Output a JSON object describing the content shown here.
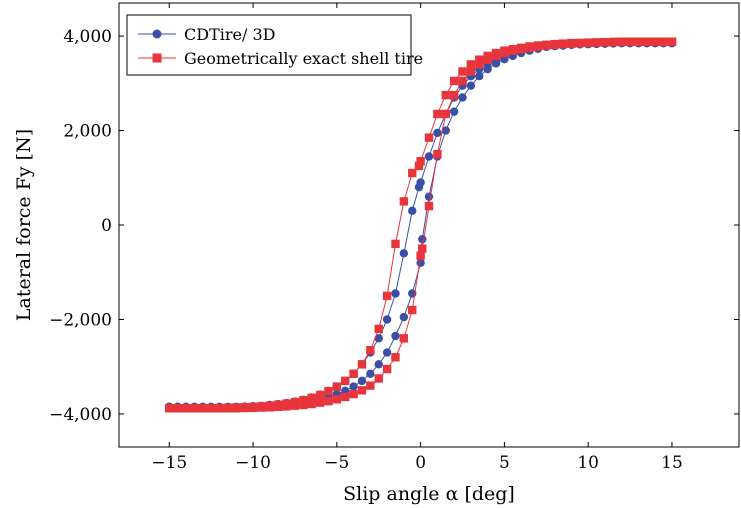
{
  "chart_data": {
    "type": "line",
    "xlabel": "Slip angle α [deg]",
    "ylabel": "Lateral force Fy [N]",
    "xlim": [
      -18,
      19
    ],
    "ylim": [
      -4700,
      4700
    ],
    "x_ticks": [
      -15,
      -10,
      -5,
      0,
      5,
      10,
      15
    ],
    "x_tick_labels": [
      "−15",
      "−10",
      "−5",
      "0",
      "5",
      "10",
      "15"
    ],
    "y_ticks": [
      -4000,
      -2000,
      0,
      2000,
      4000
    ],
    "y_tick_labels": [
      "−4,000",
      "−2,000",
      "0",
      "2,000",
      "4,000"
    ],
    "grid": false,
    "legend_position": "top-left",
    "series": [
      {
        "name": "CDTire/ 3D",
        "color": "#3b4fa7",
        "marker": "circle",
        "branches": [
          {
            "x": [
              -15,
              -14.5,
              -14,
              -13.5,
              -13,
              -12.5,
              -12,
              -11.5,
              -11,
              -10.5,
              -10,
              -9.5,
              -9,
              -8.5,
              -8,
              -7.5,
              -7,
              -6.5,
              -6,
              -5.5,
              -5,
              -4.5,
              -4,
              -3.5,
              -3,
              -2.5,
              -2,
              -1.5,
              -1,
              -0.5,
              -0.1,
              0,
              0.5,
              1,
              1.5,
              2,
              2.5,
              3,
              3.5,
              4,
              4.5,
              5,
              5.5,
              6,
              6.5,
              7,
              7.5,
              8,
              8.5,
              9,
              9.5,
              10,
              10.5,
              11,
              11.5,
              12,
              12.5,
              13,
              13.5,
              14,
              14.5,
              15
            ],
            "y": [
              -3850,
              -3850,
              -3850,
              -3855,
              -3855,
              -3860,
              -3860,
              -3860,
              -3855,
              -3850,
              -3840,
              -3830,
              -3810,
              -3790,
              -3770,
              -3740,
              -3700,
              -3650,
              -3590,
              -3510,
              -3420,
              -3300,
              -3150,
              -2950,
              -2700,
              -2400,
              -2000,
              -1450,
              -600,
              300,
              800,
              900,
              1450,
              1950,
              2350,
              2700,
              2950,
              3150,
              3300,
              3420,
              3510,
              3580,
              3640,
              3690,
              3720,
              3750,
              3780,
              3790,
              3800,
              3815,
              3825,
              3830,
              3835,
              3840,
              3845,
              3850,
              3850,
              3850,
              3850,
              3850,
              3850,
              3850
            ]
          },
          {
            "x": [
              15,
              14.5,
              14,
              13.5,
              13,
              12.5,
              12,
              11.5,
              11,
              10.5,
              10,
              9.5,
              9,
              8.5,
              8,
              7.5,
              7,
              6.5,
              6,
              5.5,
              5,
              4.5,
              4,
              3.5,
              3,
              2.5,
              2,
              1.5,
              1,
              0.5,
              0.1,
              0,
              -0.5,
              -1,
              -1.5,
              -2,
              -2.5,
              -3,
              -3.5,
              -4,
              -4.5,
              -5,
              -5.5,
              -6,
              -6.5,
              -7,
              -7.5,
              -8,
              -8.5,
              -9,
              -9.5,
              -10,
              -10.5,
              -11,
              -11.5,
              -12,
              -12.5,
              -13,
              -13.5,
              -14,
              -14.5,
              -15
            ],
            "y": [
              3850,
              3850,
              3850,
              3850,
              3850,
              3850,
              3850,
              3845,
              3840,
              3835,
              3830,
              3825,
              3815,
              3800,
              3790,
              3770,
              3730,
              3690,
              3640,
              3580,
              3510,
              3420,
              3300,
              3150,
              2950,
              2700,
              2400,
              2000,
              1450,
              600,
              -300,
              -800,
              -1450,
              -1950,
              -2350,
              -2700,
              -2950,
              -3150,
              -3300,
              -3420,
              -3510,
              -3580,
              -3640,
              -3690,
              -3730,
              -3760,
              -3780,
              -3800,
              -3815,
              -3825,
              -3835,
              -3840,
              -3845,
              -3850,
              -3850,
              -3850,
              -3850,
              -3850,
              -3850,
              -3850,
              -3850,
              -3850
            ]
          }
        ]
      },
      {
        "name": "Geometrically exact shell tire",
        "color": "#e8353b",
        "marker": "square",
        "branches": [
          {
            "x": [
              -15,
              -14.5,
              -14,
              -13.5,
              -13,
              -12.5,
              -12,
              -11.5,
              -11,
              -10.5,
              -10,
              -9.5,
              -9,
              -8.5,
              -8,
              -7.5,
              -7,
              -6.5,
              -6,
              -5.5,
              -5,
              -4.5,
              -4,
              -3.5,
              -3,
              -2.5,
              -2,
              -1.5,
              -1,
              -0.5,
              -0.1,
              0,
              0.5,
              1,
              1.5,
              2,
              2.5,
              3,
              3.5,
              4,
              4.5,
              5,
              5.5,
              6,
              6.5,
              7,
              7.5,
              8,
              8.5,
              9,
              9.5,
              10,
              10.5,
              11,
              11.5,
              12,
              12.5,
              13,
              13.5,
              14,
              14.5,
              15
            ],
            "y": [
              -3880,
              -3880,
              -3880,
              -3880,
              -3880,
              -3880,
              -3875,
              -3870,
              -3865,
              -3860,
              -3850,
              -3840,
              -3825,
              -3805,
              -3780,
              -3750,
              -3710,
              -3660,
              -3600,
              -3520,
              -3420,
              -3300,
              -3150,
              -2950,
              -2650,
              -2200,
              -1500,
              -400,
              500,
              1100,
              1250,
              1350,
              1850,
              2350,
              2750,
              3050,
              3250,
              3400,
              3500,
              3580,
              3640,
              3690,
              3720,
              3750,
              3780,
              3800,
              3815,
              3830,
              3840,
              3850,
              3855,
              3860,
              3865,
              3870,
              3875,
              3880,
              3880,
              3880,
              3880,
              3880,
              3880,
              3880
            ]
          },
          {
            "x": [
              15,
              14.5,
              14,
              13.5,
              13,
              12.5,
              12,
              11.5,
              11,
              10.5,
              10,
              9.5,
              9,
              8.5,
              8,
              7.5,
              7,
              6.5,
              6,
              5.5,
              5,
              4.5,
              4,
              3.5,
              3,
              2.5,
              2,
              1.5,
              1,
              0.5,
              0.1,
              0,
              -0.5,
              -1,
              -1.5,
              -2,
              -2.5,
              -3,
              -3.5,
              -4,
              -4.5,
              -5,
              -5.5,
              -6,
              -6.5,
              -7,
              -7.5,
              -8,
              -8.5,
              -9,
              -9.5,
              -10,
              -10.5,
              -11,
              -11.5,
              -12,
              -12.5,
              -13,
              -13.5,
              -14,
              -14.5,
              -15
            ],
            "y": [
              3880,
              3880,
              3880,
              3880,
              3880,
              3880,
              3880,
              3875,
              3870,
              3865,
              3860,
              3850,
              3840,
              3830,
              3815,
              3800,
              3780,
              3750,
              3720,
              3690,
              3640,
              3580,
              3500,
              3400,
              3250,
              3050,
              2750,
              2350,
              1500,
              400,
              -500,
              -650,
              -1800,
              -2400,
              -2800,
              -3050,
              -3250,
              -3400,
              -3500,
              -3580,
              -3640,
              -3690,
              -3730,
              -3760,
              -3790,
              -3810,
              -3825,
              -3840,
              -3850,
              -3860,
              -3865,
              -3870,
              -3875,
              -3880,
              -3880,
              -3880,
              -3880,
              -3880,
              -3880,
              -3880,
              -3880,
              -3880
            ]
          }
        ]
      }
    ]
  }
}
